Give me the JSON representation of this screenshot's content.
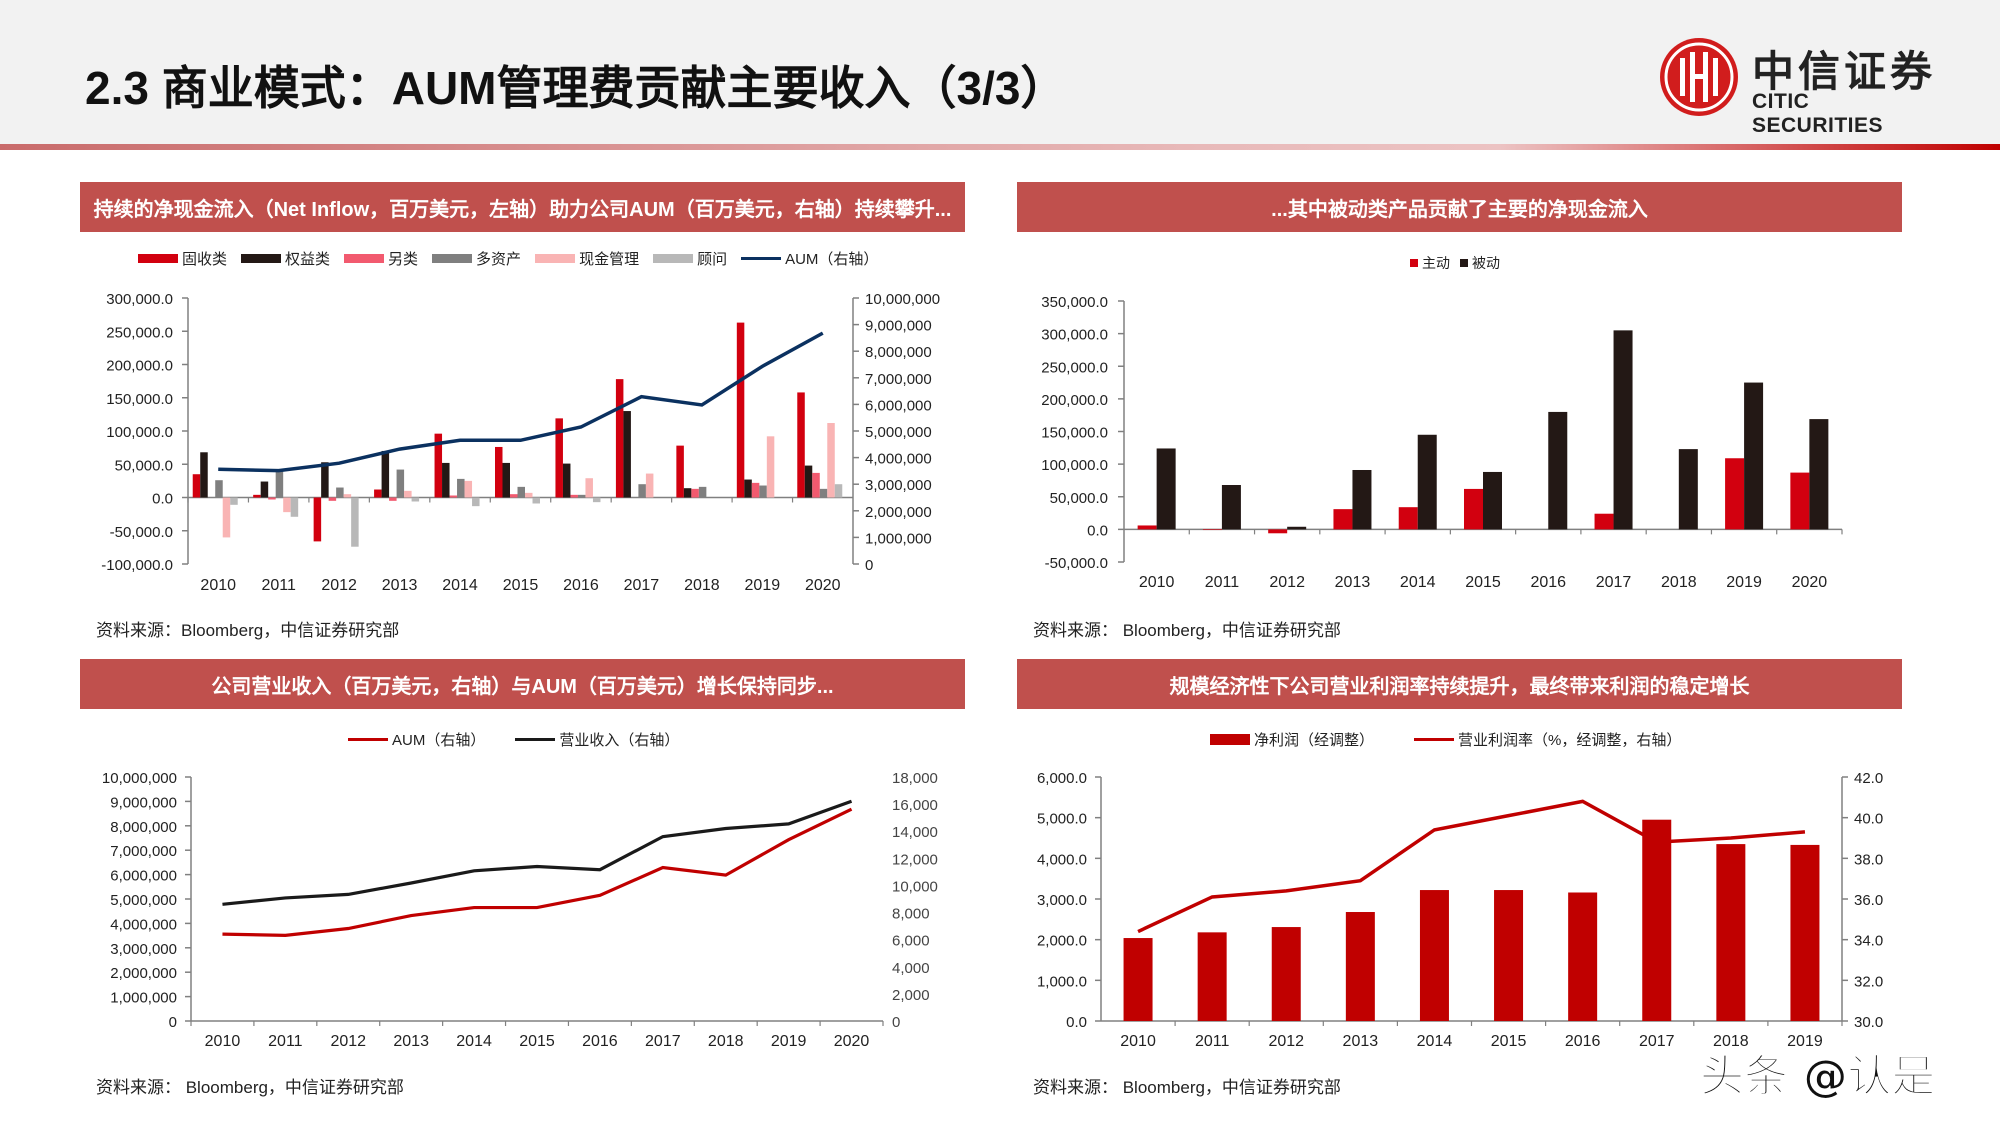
{
  "header": {
    "title": "2.3 商业模式：AUM管理费贡献主要收入（3/3）",
    "logo_cn": "中信证券",
    "logo_en": "CITIC SECURITIES"
  },
  "panels": [
    {
      "banner": "持续的净现金流入（Net Inflow，百万美元，左轴）助力公司AUM（百万美元，右轴）持续攀升...",
      "source": "资料来源：Bloomberg，中信证券研究部"
    },
    {
      "banner": "...其中被动类产品贡献了主要的净现金流入",
      "source": "资料来源：  Bloomberg，中信证券研究部"
    },
    {
      "banner": "公司营业收入（百万美元，右轴）与AUM（百万美元）增长保持同步...",
      "source": "资料来源：  Bloomberg，中信证券研究部"
    },
    {
      "banner": "规模经济性下公司营业利润率持续提升，最终带来利润的稳定增长",
      "source": "资料来源：  Bloomberg，中信证券研究部"
    }
  ],
  "legend1": [
    "固收类",
    "权益类",
    "另类",
    "多资产",
    "现金管理",
    "顾问",
    "AUM（右轴）"
  ],
  "legend2": [
    "主动",
    "被动"
  ],
  "legend3": [
    "AUM（右轴）",
    "营业收入（右轴）"
  ],
  "legend4": [
    "净利润（经调整）",
    "营业利润率（%，经调整，右轴）"
  ],
  "colors": {
    "banner": "#c0504d",
    "fixed_income": "#d2000f",
    "equity": "#231815",
    "alternative": "#f25a6f",
    "multi_asset": "#7f7f7f",
    "cash": "#f9b4b4",
    "advisory": "#b8b8b8",
    "aum_line": "#0b3160",
    "red": "#c00000",
    "black": "#1a1a1a"
  },
  "watermark": "头条 @认是",
  "chart_data": [
    {
      "type": "bar",
      "title": "持续的净现金流入（Net Inflow，百万美元，左轴）助力公司AUM（百万美元，右轴）持续攀升...",
      "categories": [
        "2010",
        "2011",
        "2012",
        "2013",
        "2014",
        "2015",
        "2016",
        "2017",
        "2018",
        "2019",
        "2020"
      ],
      "series": [
        {
          "name": "固收类",
          "axis": "left",
          "values": [
            35000,
            4000,
            -66000,
            12000,
            96000,
            76000,
            119000,
            178000,
            78000,
            263000,
            158000
          ]
        },
        {
          "name": "权益类",
          "axis": "left",
          "values": [
            68000,
            24000,
            53000,
            70000,
            52000,
            52000,
            51000,
            130000,
            14000,
            27000,
            48000
          ]
        },
        {
          "name": "另类",
          "axis": "left",
          "values": [
            0,
            -3000,
            -5000,
            -5000,
            3000,
            5000,
            4000,
            0,
            13000,
            22000,
            37000
          ]
        },
        {
          "name": "多资产",
          "axis": "left",
          "values": [
            26000,
            42000,
            15000,
            42000,
            28000,
            16000,
            4000,
            20000,
            16000,
            18000,
            13000
          ]
        },
        {
          "name": "现金管理",
          "axis": "left",
          "values": [
            -60000,
            -22000,
            5000,
            10000,
            25000,
            7000,
            29000,
            36000,
            0,
            92000,
            112000
          ]
        },
        {
          "name": "顾问",
          "axis": "left",
          "values": [
            -11000,
            -29000,
            -74000,
            -6000,
            -13000,
            -9000,
            -7000,
            0,
            0,
            0,
            20000
          ]
        },
        {
          "name": "AUM（右轴）",
          "axis": "right",
          "type": "line",
          "values": [
            3560000,
            3510000,
            3790000,
            4320000,
            4650000,
            4650000,
            5150000,
            6290000,
            5980000,
            7430000,
            8680000
          ]
        }
      ],
      "yleft": {
        "ticks": [
          "300,000.0",
          "250,000.0",
          "200,000.0",
          "150,000.0",
          "100,000.0",
          "50,000.0",
          "0.0",
          "-50,000.0",
          "-100,000.0"
        ],
        "range": [
          -100000,
          300000
        ]
      },
      "yright": {
        "ticks": [
          "10,000,000",
          "9,000,000",
          "8,000,000",
          "7,000,000",
          "6,000,000",
          "5,000,000",
          "4,000,000",
          "3,000,000",
          "2,000,000",
          "1,000,000",
          "0"
        ],
        "range": [
          0,
          10000000
        ]
      },
      "grid": false,
      "legend_position": "top"
    },
    {
      "type": "bar",
      "title": "...其中被动类产品贡献了主要的净现金流入",
      "categories": [
        "2010",
        "2011",
        "2012",
        "2013",
        "2014",
        "2015",
        "2016",
        "2017",
        "2018",
        "2019",
        "2020"
      ],
      "series": [
        {
          "name": "主动",
          "values": [
            6000,
            -1000,
            -6000,
            31000,
            34000,
            62000,
            0,
            24000,
            0,
            109000,
            87000
          ]
        },
        {
          "name": "被动",
          "values": [
            124000,
            68000,
            4000,
            91000,
            145000,
            88000,
            180000,
            305000,
            123000,
            225000,
            169000
          ]
        }
      ],
      "yleft": {
        "ticks": [
          "350,000.0",
          "300,000.0",
          "250,000.0",
          "200,000.0",
          "150,000.0",
          "100,000.0",
          "50,000.0",
          "0.0",
          "-50,000.0"
        ],
        "range": [
          -50000,
          350000
        ]
      },
      "grid": false,
      "legend_position": "top"
    },
    {
      "type": "line",
      "title": "公司营业收入（百万美元，右轴）与AUM（百万美元）增长保持同步...",
      "categories": [
        "2010",
        "2011",
        "2012",
        "2013",
        "2014",
        "2015",
        "2016",
        "2017",
        "2018",
        "2019",
        "2020"
      ],
      "series": [
        {
          "name": "AUM（右轴）",
          "axis": "left",
          "values": [
            3560000,
            3510000,
            3790000,
            4320000,
            4650000,
            4650000,
            5150000,
            6290000,
            5980000,
            7430000,
            8680000
          ]
        },
        {
          "name": "营业收入（右轴）",
          "axis": "right",
          "values": [
            8610,
            9080,
            9340,
            10180,
            11080,
            11400,
            11160,
            13600,
            14200,
            14540,
            16210
          ]
        }
      ],
      "yleft": {
        "ticks": [
          "10,000,000",
          "9,000,000",
          "8,000,000",
          "7,000,000",
          "6,000,000",
          "5,000,000",
          "4,000,000",
          "3,000,000",
          "2,000,000",
          "1,000,000",
          "0"
        ],
        "range": [
          0,
          10000000
        ]
      },
      "yright": {
        "ticks": [
          "18,000",
          "16,000",
          "14,000",
          "12,000",
          "10,000",
          "8,000",
          "6,000",
          "4,000",
          "2,000",
          "0"
        ],
        "range": [
          0,
          18000
        ]
      },
      "grid": false,
      "legend_position": "top"
    },
    {
      "type": "bar",
      "title": "规模经济性下公司营业利润率持续提升，最终带来利润的稳定增长",
      "categories": [
        "2010",
        "2011",
        "2012",
        "2013",
        "2014",
        "2015",
        "2016",
        "2017",
        "2018",
        "2019"
      ],
      "series": [
        {
          "name": "净利润（经调整）",
          "axis": "left",
          "values": [
            2040,
            2180,
            2310,
            2680,
            3220,
            3220,
            3160,
            4950,
            4350,
            4330
          ]
        },
        {
          "name": "营业利润率（%，经调整，右轴）",
          "axis": "right",
          "type": "line",
          "values": [
            34.4,
            36.1,
            36.4,
            36.9,
            39.4,
            40.1,
            40.8,
            38.8,
            39.0,
            39.3
          ]
        }
      ],
      "yleft": {
        "ticks": [
          "6,000.0",
          "5,000.0",
          "4,000.0",
          "3,000.0",
          "2,000.0",
          "1,000.0",
          "0.0"
        ],
        "range": [
          0,
          6000
        ]
      },
      "yright": {
        "ticks": [
          "42.0",
          "40.0",
          "38.0",
          "36.0",
          "34.0",
          "32.0",
          "30.0"
        ],
        "range": [
          30,
          42
        ]
      },
      "grid": false,
      "legend_position": "top"
    }
  ]
}
